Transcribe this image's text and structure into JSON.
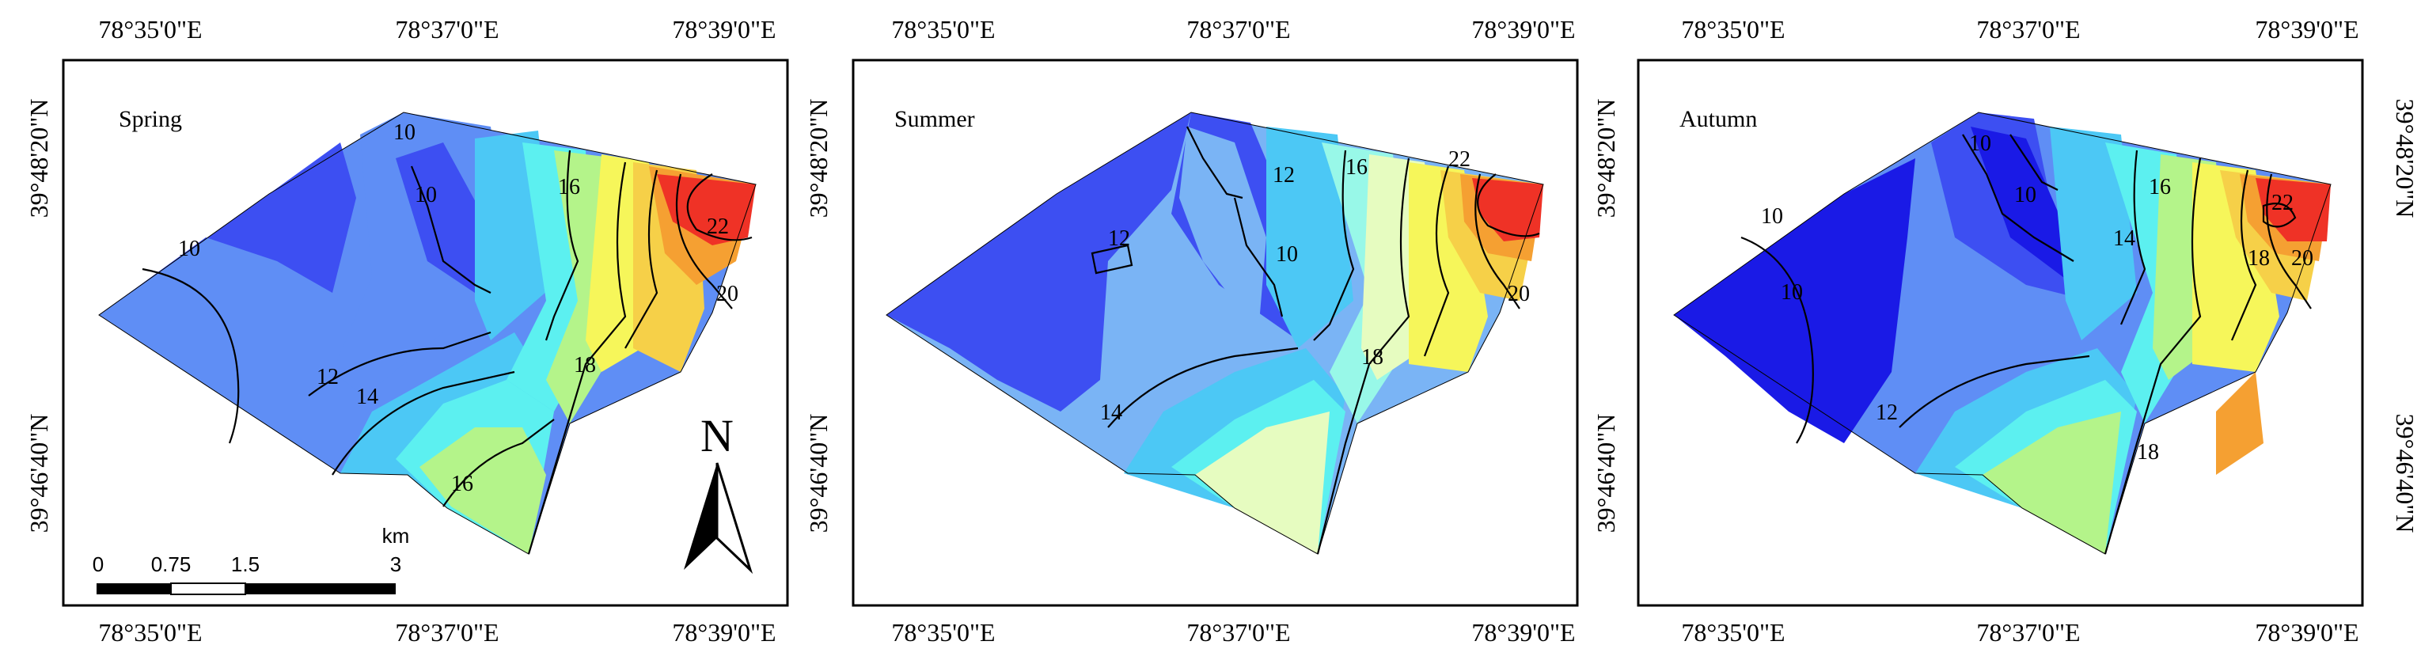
{
  "panels": [
    {
      "season": "Spring",
      "lon_ticks": [
        "78°35'0\"E",
        "78°37'0\"E",
        "78°39'0\"E"
      ],
      "lat_ticks_left": [
        "39°48'20\"N",
        "39°46'40\"N"
      ],
      "contour_labels": [
        "10",
        "10",
        "10",
        "12",
        "14",
        "16",
        "16",
        "18",
        "20",
        "22"
      ]
    },
    {
      "season": "Summer",
      "lon_ticks": [
        "78°35'0\"E",
        "78°37'0\"E",
        "78°39'0\"E"
      ],
      "lat_ticks_left": [
        "39°48'20\"N",
        "39°46'40\"N"
      ],
      "contour_labels": [
        "12",
        "12",
        "10",
        "16",
        "22",
        "20",
        "18",
        "14"
      ]
    },
    {
      "season": "Autumn",
      "lon_ticks": [
        "78°35'0\"E",
        "78°37'0\"E",
        "78°39'0\"E"
      ],
      "lat_ticks_right": [
        "39°48'20\"N",
        "39°46'40\"N"
      ],
      "contour_labels": [
        "10",
        "10",
        "10",
        "10",
        "12",
        "14",
        "16",
        "18",
        "18",
        "20",
        "22"
      ]
    }
  ],
  "north_arrow": {
    "label": "N"
  },
  "scale_bar": {
    "unit": "km",
    "ticks": [
      "0",
      "0.75",
      "1.5",
      "3"
    ]
  },
  "colors": {
    "deep_blue": "#1a1ae6",
    "blue": "#3d4ff2",
    "mid_blue": "#5f8ef5",
    "light_blue": "#7ab4f5",
    "sky": "#4cc8f5",
    "cyan": "#5cf0f0",
    "light_cyan": "#98f8e8",
    "light_green": "#b4f48a",
    "pale": "#e6fcc0",
    "yellow": "#f6f65a",
    "gold": "#f6d048",
    "orange": "#f5a032",
    "dark_orange": "#f27a1e",
    "red": "#ef3226"
  }
}
